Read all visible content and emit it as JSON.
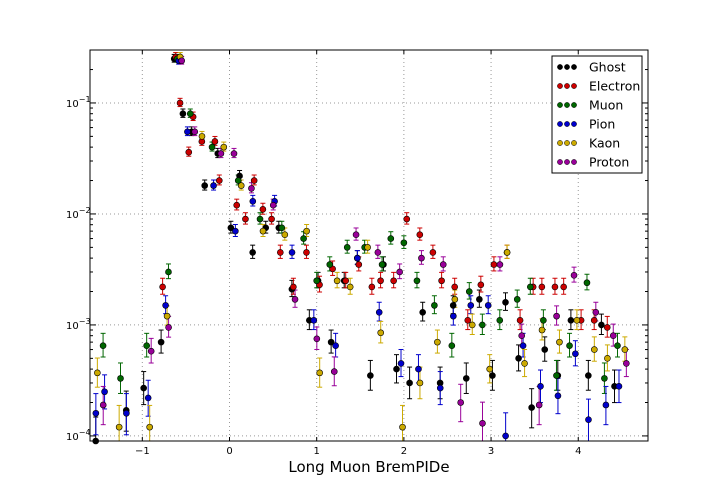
{
  "chart_data": {
    "type": "scatter",
    "title": "",
    "xlabel": "Long Muon BremPIDe",
    "ylabel": "",
    "xlim": [
      -1.6,
      4.8
    ],
    "ylim": [
      9e-05,
      0.3
    ],
    "yscale": "log",
    "grid": true,
    "legend_position": "top-right",
    "x_ticks": [
      {
        "value": -1,
        "label": "−1"
      },
      {
        "value": 0,
        "label": "0"
      },
      {
        "value": 1,
        "label": "1"
      },
      {
        "value": 2,
        "label": "2"
      },
      {
        "value": 3,
        "label": "3"
      },
      {
        "value": 4,
        "label": "4"
      }
    ],
    "y_ticks": [
      {
        "value": 0.0001,
        "base": "10",
        "exp": "−4"
      },
      {
        "value": 0.001,
        "base": "10",
        "exp": "−3"
      },
      {
        "value": 0.01,
        "base": "10",
        "exp": "−2"
      },
      {
        "value": 0.1,
        "base": "10",
        "exp": "−1"
      }
    ],
    "series": [
      {
        "name": "Ghost",
        "color": "#000000",
        "points": [
          [
            -1.5,
            9e-05
          ],
          [
            -1.15,
            0.00017
          ],
          [
            -0.95,
            0.00027
          ],
          [
            -0.75,
            0.0007
          ],
          [
            -0.6,
            0.25
          ],
          [
            -0.5,
            0.08
          ],
          [
            -0.4,
            0.055
          ],
          [
            -0.25,
            0.018
          ],
          [
            -0.1,
            0.035
          ],
          [
            0.05,
            0.0075
          ],
          [
            0.15,
            0.022
          ],
          [
            0.3,
            0.0045
          ],
          [
            0.45,
            0.0075
          ],
          [
            0.6,
            0.0075
          ],
          [
            0.75,
            0.0021
          ],
          [
            0.95,
            0.0011
          ],
          [
            1.05,
            0.0025
          ],
          [
            1.2,
            0.0007
          ],
          [
            1.35,
            0.0025
          ],
          [
            1.5,
            0.004
          ],
          [
            1.65,
            0.00035
          ],
          [
            1.8,
            0.0035
          ],
          [
            1.95,
            0.0004
          ],
          [
            2.1,
            0.0003
          ],
          [
            2.25,
            0.0013
          ],
          [
            2.45,
            0.0003
          ],
          [
            2.6,
            0.0015
          ],
          [
            2.75,
            0.00033
          ],
          [
            2.9,
            0.0017
          ],
          [
            3.05,
            0.00035
          ],
          [
            3.2,
            0.0016
          ],
          [
            3.35,
            0.0005
          ],
          [
            3.5,
            0.00018
          ],
          [
            3.65,
            0.0006
          ],
          [
            3.8,
            0.00035
          ],
          [
            3.95,
            0.0011
          ],
          [
            4.15,
            0.00035
          ],
          [
            4.3,
            0.001
          ],
          [
            4.45,
            0.00028
          ]
        ]
      },
      {
        "name": "Electron",
        "color": "#cc0000",
        "points": [
          [
            -0.75,
            0.0022
          ],
          [
            -0.6,
            0.26
          ],
          [
            -0.55,
            0.1
          ],
          [
            -0.45,
            0.036
          ],
          [
            -0.4,
            0.075
          ],
          [
            -0.3,
            0.045
          ],
          [
            -0.15,
            0.045
          ],
          [
            -0.1,
            0.02
          ],
          [
            0.1,
            0.012
          ],
          [
            0.2,
            0.009
          ],
          [
            0.3,
            0.02
          ],
          [
            0.4,
            0.011
          ],
          [
            0.5,
            0.009
          ],
          [
            0.6,
            0.0045
          ],
          [
            0.75,
            0.0022
          ],
          [
            0.9,
            0.0045
          ],
          [
            1.05,
            0.0023
          ],
          [
            1.2,
            0.0032
          ],
          [
            1.35,
            0.0025
          ],
          [
            1.5,
            0.0035
          ],
          [
            1.65,
            0.0022
          ],
          [
            1.75,
            0.0025
          ],
          [
            1.9,
            0.0025
          ],
          [
            2.05,
            0.009
          ],
          [
            2.2,
            0.0065
          ],
          [
            2.35,
            0.0045
          ],
          [
            2.45,
            0.0025
          ],
          [
            2.6,
            0.0022
          ],
          [
            2.75,
            0.0011
          ],
          [
            2.9,
            0.0023
          ],
          [
            3.05,
            0.0035
          ],
          [
            3.2,
            0.0045
          ],
          [
            3.35,
            0.0011
          ],
          [
            3.5,
            0.0022
          ],
          [
            3.6,
            0.0022
          ],
          [
            3.75,
            0.0022
          ],
          [
            3.85,
            0.0022
          ],
          [
            4.05,
            0.0011
          ],
          [
            4.2,
            0.0011
          ],
          [
            4.35,
            0.00095
          ]
        ]
      },
      {
        "name": "Muon",
        "color": "#006600",
        "points": [
          [
            -1.45,
            0.00065
          ],
          [
            -1.25,
            0.00033
          ],
          [
            -0.95,
            0.00065
          ],
          [
            -0.7,
            0.003
          ],
          [
            -0.6,
            0.25
          ],
          [
            -0.45,
            0.08
          ],
          [
            -0.2,
            0.04
          ],
          [
            0.1,
            0.02
          ],
          [
            0.35,
            0.009
          ],
          [
            0.6,
            0.0075
          ],
          [
            0.85,
            0.006
          ],
          [
            1.0,
            0.0025
          ],
          [
            1.15,
            0.0035
          ],
          [
            1.35,
            0.005
          ],
          [
            1.55,
            0.005
          ],
          [
            1.75,
            0.0035
          ],
          [
            1.85,
            0.006
          ],
          [
            2.0,
            0.0055
          ],
          [
            2.15,
            0.0025
          ],
          [
            2.35,
            0.0015
          ],
          [
            2.55,
            0.00065
          ],
          [
            2.75,
            0.002
          ],
          [
            2.9,
            0.001
          ],
          [
            3.1,
            0.0011
          ],
          [
            3.3,
            0.0017
          ],
          [
            3.45,
            0.0022
          ],
          [
            3.6,
            0.0011
          ],
          [
            3.75,
            0.00035
          ],
          [
            3.9,
            0.00065
          ],
          [
            4.1,
            0.0024
          ],
          [
            4.3,
            0.00033
          ],
          [
            4.45,
            0.00065
          ]
        ]
      },
      {
        "name": "Pion",
        "color": "#0000cc",
        "points": [
          [
            -1.55,
            0.00016
          ],
          [
            -1.45,
            0.00025
          ],
          [
            -1.2,
            0.00016
          ],
          [
            -0.95,
            0.00022
          ],
          [
            -0.75,
            0.0015
          ],
          [
            -0.6,
            0.24
          ],
          [
            -0.5,
            0.055
          ],
          [
            -0.2,
            0.018
          ],
          [
            0.05,
            0.007
          ],
          [
            0.25,
            0.013
          ],
          [
            0.5,
            0.013
          ],
          [
            0.7,
            0.0045
          ],
          [
            0.95,
            0.0011
          ],
          [
            1.2,
            0.00065
          ],
          [
            1.45,
            0.004
          ],
          [
            1.7,
            0.0013
          ],
          [
            1.95,
            0.00045
          ],
          [
            2.15,
            0.0004
          ],
          [
            2.4,
            0.00027
          ],
          [
            2.55,
            0.0012
          ],
          [
            2.75,
            0.0015
          ],
          [
            2.95,
            0.0015
          ],
          [
            3.15,
            0.0001
          ],
          [
            3.35,
            0.00065
          ],
          [
            3.55,
            0.00028
          ],
          [
            3.75,
            0.00023
          ],
          [
            3.95,
            0.00055
          ],
          [
            4.1,
            0.00014
          ],
          [
            4.3,
            0.00019
          ],
          [
            4.45,
            0.00028
          ]
        ]
      },
      {
        "name": "Kaon",
        "color": "#ccaa00",
        "points": [
          [
            -1.55,
            0.00037
          ],
          [
            -1.3,
            0.00012
          ],
          [
            -0.95,
            0.00012
          ],
          [
            -0.75,
            0.0012
          ],
          [
            -0.6,
            0.26
          ],
          [
            -0.35,
            0.05
          ],
          [
            -0.1,
            0.04
          ],
          [
            0.1,
            0.018
          ],
          [
            0.35,
            0.007
          ],
          [
            0.6,
            0.0065
          ],
          [
            0.85,
            0.007
          ],
          [
            1.0,
            0.00037
          ],
          [
            1.2,
            0.0025
          ],
          [
            1.35,
            0.0022
          ],
          [
            1.55,
            0.005
          ],
          [
            1.7,
            0.00085
          ],
          [
            1.95,
            0.00012
          ],
          [
            2.15,
            0.0003
          ],
          [
            2.35,
            0.0007
          ],
          [
            2.55,
            0.0017
          ],
          [
            2.75,
            0.001
          ],
          [
            2.95,
            0.0004
          ],
          [
            3.15,
            0.0045
          ],
          [
            3.35,
            0.00045
          ],
          [
            3.55,
            0.0009
          ],
          [
            3.75,
            0.0007
          ],
          [
            3.95,
            0.0011
          ],
          [
            4.15,
            0.0006
          ],
          [
            4.3,
            0.0005
          ],
          [
            4.5,
            0.0006
          ]
        ]
      },
      {
        "name": "Proton",
        "color": "#990099",
        "points": [
          [
            -1.5,
            0.00019
          ],
          [
            -0.95,
            0.00058
          ],
          [
            -0.75,
            0.00095
          ],
          [
            -0.6,
            0.24
          ],
          [
            -0.45,
            0.055
          ],
          [
            -0.15,
            0.035
          ],
          [
            0.0,
            0.035
          ],
          [
            0.2,
            0.017
          ],
          [
            0.45,
            0.012
          ],
          [
            0.7,
            0.0017
          ],
          [
            0.95,
            0.00075
          ],
          [
            1.15,
            0.00038
          ],
          [
            1.4,
            0.0065
          ],
          [
            1.65,
            0.0045
          ],
          [
            1.9,
            0.003
          ],
          [
            2.15,
            0.004
          ],
          [
            2.4,
            0.0035
          ],
          [
            2.6,
            0.0002
          ],
          [
            2.85,
            0.00013
          ],
          [
            3.05,
            0.0035
          ],
          [
            3.3,
            0.0008
          ],
          [
            3.5,
            0.00019
          ],
          [
            3.7,
            0.0012
          ],
          [
            3.9,
            0.0028
          ],
          [
            4.15,
            0.0013
          ],
          [
            4.35,
            0.0008
          ],
          [
            4.5,
            0.00045
          ]
        ]
      }
    ]
  }
}
